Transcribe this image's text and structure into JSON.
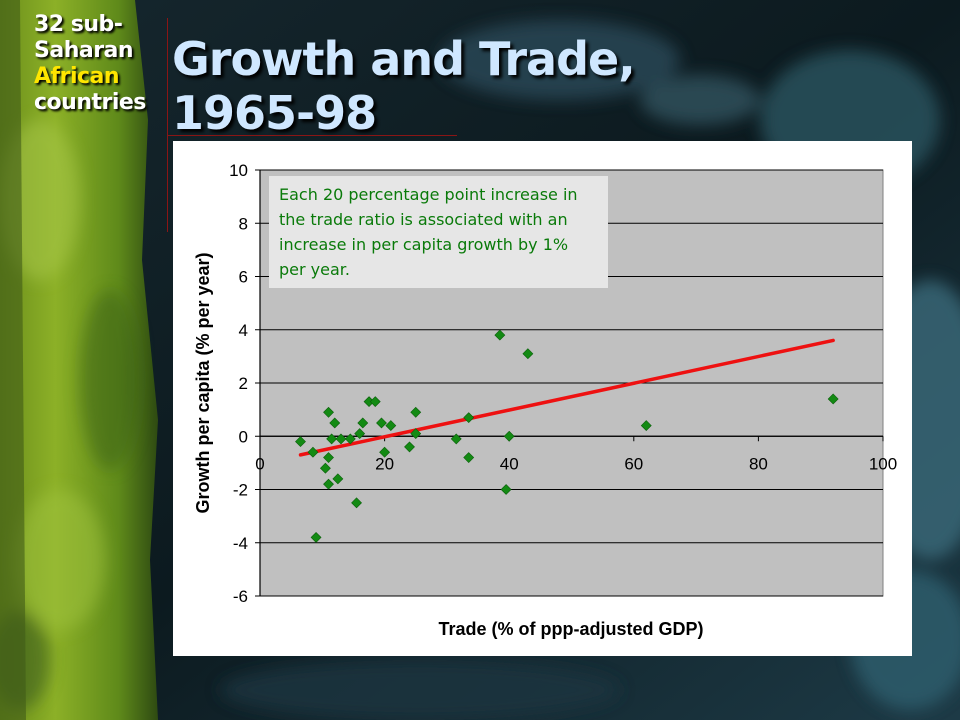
{
  "slide": {
    "side_title": [
      "32 sub-",
      "Saharan",
      "African",
      "countries"
    ],
    "main_title_line1": "Growth and Trade,",
    "main_title_line2": "1965-98"
  },
  "colors": {
    "point": "#138a13",
    "trendline": "#ee1111",
    "plot_bg": "#c0c0c0",
    "annotation_text": "#0a7a0a",
    "highlight_word": "#ffe600"
  },
  "chart_data": {
    "type": "scatter",
    "xlabel": "Trade (% of ppp-adjusted GDP)",
    "ylabel": "Growth per capita (% per year)",
    "xlim": [
      0,
      100
    ],
    "ylim": [
      -6,
      10
    ],
    "x_ticks": [
      "0",
      "20",
      "40",
      "60",
      "80",
      "100"
    ],
    "y_ticks": [
      "10",
      "8",
      "6",
      "4",
      "2",
      "0",
      "-2",
      "-4",
      "-6"
    ],
    "grid": "horizontal",
    "legend": "none",
    "annotation": "Each 20 percentage point increase in the trade ratio is associated with an increase in per capita growth by 1% per year.",
    "series": [
      {
        "x": [
          6.5,
          8.5,
          9.0,
          11.0,
          11.0,
          10.5,
          11.5,
          12.0,
          12.5,
          11.0,
          13.0,
          14.5,
          15.5,
          16.0,
          16.5,
          17.5,
          18.5,
          19.5,
          20.0,
          21.0,
          24.0,
          25.0,
          25.0,
          31.5,
          33.5,
          33.5,
          38.5,
          39.5,
          40.0,
          43.0,
          62.0,
          92.0
        ],
        "y": [
          -0.2,
          -0.6,
          -3.8,
          0.9,
          -0.8,
          -1.2,
          -0.1,
          0.5,
          -1.6,
          -1.8,
          -0.1,
          -0.1,
          -2.5,
          0.1,
          0.5,
          1.3,
          1.3,
          0.5,
          -0.6,
          0.4,
          -0.4,
          0.1,
          0.9,
          -0.1,
          -0.8,
          0.7,
          3.8,
          -2.0,
          0.0,
          3.1,
          0.4,
          1.4
        ]
      }
    ],
    "trendline": {
      "x": [
        6.5,
        92.0
      ],
      "y": [
        -0.7,
        3.6
      ]
    }
  }
}
